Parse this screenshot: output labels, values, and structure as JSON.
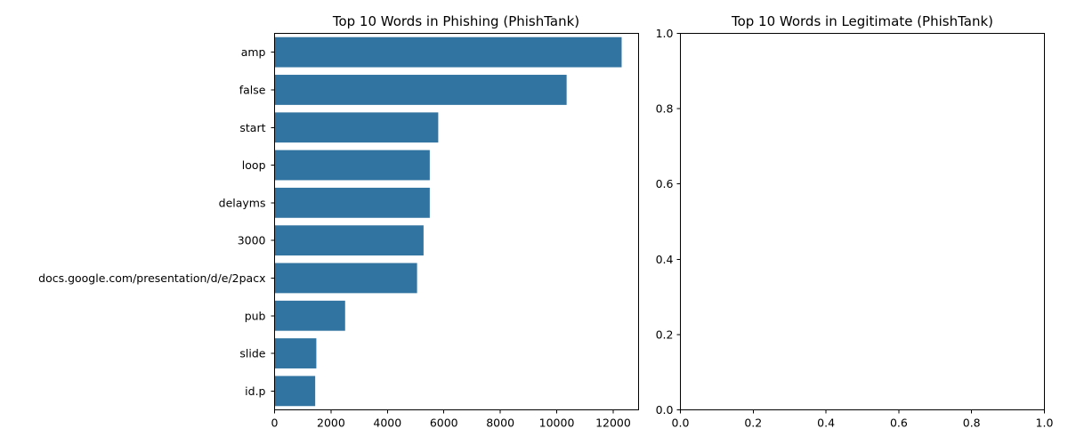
{
  "chart_data": [
    {
      "type": "bar",
      "orientation": "horizontal",
      "title": "Top 10 Words in Phishing (PhishTank)",
      "xlabel": "",
      "ylabel": "",
      "categories": [
        "amp",
        "false",
        "start",
        "loop",
        "delayms",
        "3000",
        "docs.google.com/presentation/d/e/2pacx",
        "pub",
        "slide",
        "id.p"
      ],
      "values": [
        12300,
        10350,
        5800,
        5500,
        5500,
        5280,
        5050,
        2500,
        1480,
        1440
      ],
      "xlim": [
        0,
        12900
      ],
      "xticks": [
        "0",
        "2000",
        "4000",
        "6000",
        "8000",
        "10000",
        "12000"
      ],
      "bar_color": "#3274a1",
      "grid": false
    },
    {
      "type": "bar",
      "orientation": "horizontal",
      "title": "Top 10 Words in Legitimate (PhishTank)",
      "xlabel": "",
      "ylabel": "",
      "categories": [],
      "values": [],
      "xlim": [
        0,
        1
      ],
      "ylim": [
        0,
        1
      ],
      "xticks": [
        "0.0",
        "0.2",
        "0.4",
        "0.6",
        "0.8",
        "1.0"
      ],
      "yticks": [
        "0.0",
        "0.2",
        "0.4",
        "0.6",
        "0.8",
        "1.0"
      ],
      "grid": false
    }
  ]
}
